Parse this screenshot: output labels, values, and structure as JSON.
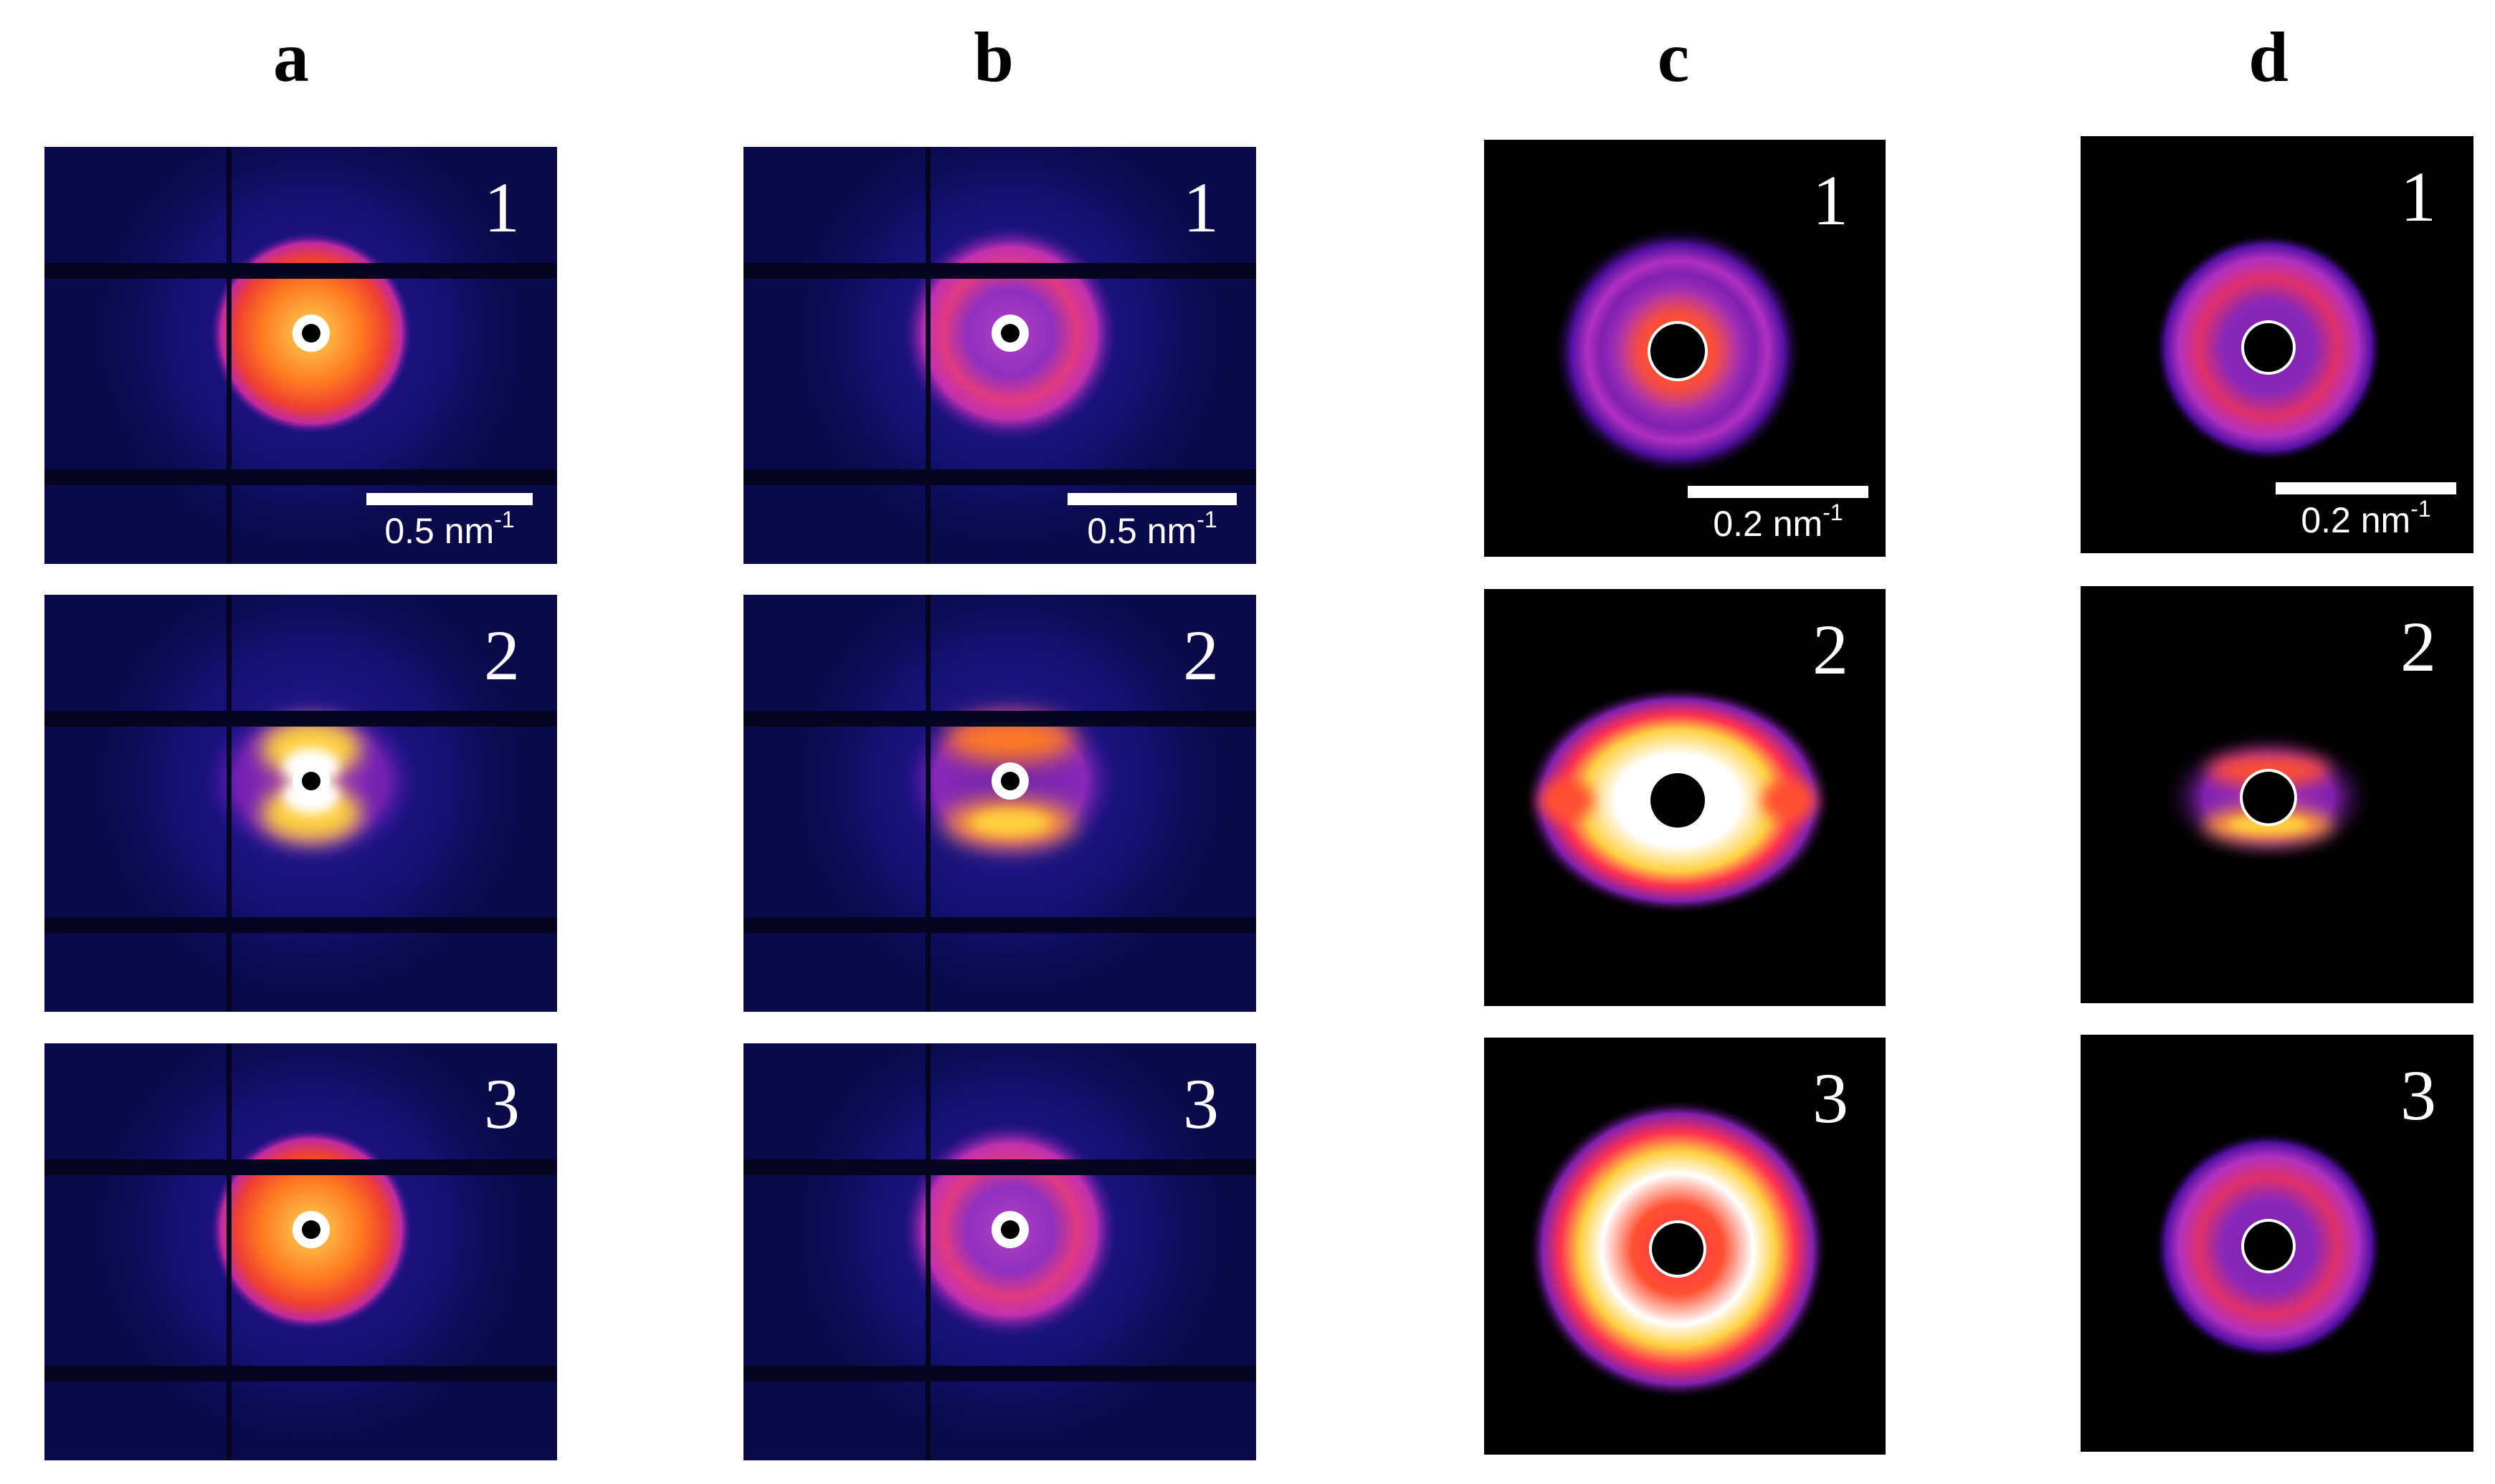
{
  "columns": [
    {
      "label": "a",
      "panels": [
        "1",
        "2",
        "3"
      ]
    },
    {
      "label": "b",
      "panels": [
        "1",
        "2",
        "3"
      ]
    },
    {
      "label": "c",
      "panels": [
        "1",
        "2",
        "3"
      ]
    },
    {
      "label": "d",
      "panels": [
        "1",
        "2",
        "3"
      ]
    }
  ],
  "scale_bars": {
    "a": {
      "value": "0.5",
      "unit": "nm",
      "exponent": "-1"
    },
    "b": {
      "value": "0.5",
      "unit": "nm",
      "exponent": "-1"
    },
    "c": {
      "value": "0.2",
      "unit": "nm",
      "exponent": "-1"
    },
    "d": {
      "value": "0.2",
      "unit": "nm",
      "exponent": "-1"
    }
  },
  "colors": {
    "background": "#ffffff",
    "detector_background": "#0a0a4a",
    "colormap": [
      "#000000",
      "#0a0a55",
      "#5a10b0",
      "#c030c0",
      "#ff3050",
      "#ff8020",
      "#ffd040",
      "#ffffff"
    ]
  }
}
